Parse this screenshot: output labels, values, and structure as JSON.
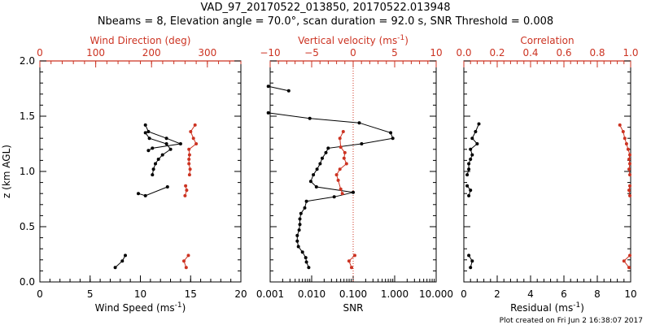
{
  "header": {
    "title_line1": "VAD_97_20170522_013850, 20170522.013948",
    "title_line2": "Nbeams = 8, Elevation angle = 70.0°, scan duration = 92.0 s, SNR Threshold = 0.008"
  },
  "footer": {
    "plot_created": "Plot created on Fri Jun  2 16:38:07 2017"
  },
  "colors": {
    "black": "#000000",
    "red": "#cc3322",
    "dotted_line": "#cc3322",
    "background": "#ffffff"
  },
  "chart_data": [
    {
      "type": "line",
      "panel": "left",
      "ylabel": "z (km AGL)",
      "ylim": [
        0,
        2.0
      ],
      "y_ticks": [
        "0.0",
        "0.5",
        "1.0",
        "1.5",
        "2.0"
      ],
      "bottom_axis": {
        "label": "Wind Speed",
        "unit": "ms",
        "unit_exp": "-1",
        "lim": [
          0,
          20
        ],
        "ticks": [
          "0",
          "5",
          "10",
          "15",
          "20"
        ]
      },
      "top_axis": {
        "label": "Wind Direction (deg)",
        "lim": [
          0,
          360
        ],
        "ticks": [
          "0",
          "100",
          "200",
          "300"
        ]
      },
      "series": [
        {
          "axis": "bottom",
          "color": "#000000",
          "segments": [
            {
              "x": [
                7.5,
                8.2,
                8.5
              ],
              "y": [
                0.13,
                0.19,
                0.24
              ]
            },
            {
              "x": [
                9.8,
                10.5,
                12.7
              ],
              "y": [
                0.8,
                0.78,
                0.86
              ]
            },
            {
              "x": [
                11.2,
                11.3,
                11.5,
                11.8,
                12.2,
                13.0,
                12.6,
                10.9,
                10.5
              ],
              "y": [
                0.97,
                1.02,
                1.07,
                1.11,
                1.15,
                1.2,
                1.25,
                1.3,
                1.35
              ]
            },
            {
              "x": [
                10.5,
                10.8,
                12.6,
                14.0,
                11.2,
                10.8
              ],
              "y": [
                1.42,
                1.36,
                1.3,
                1.25,
                1.21,
                1.19
              ]
            }
          ]
        },
        {
          "axis": "top",
          "color": "#cc3322",
          "segments": [
            {
              "x": [
                262,
                258,
                266
              ],
              "y": [
                0.13,
                0.19,
                0.24
              ]
            },
            {
              "x": [
                260,
                263,
                261
              ],
              "y": [
                0.78,
                0.83,
                0.87
              ]
            },
            {
              "x": [
                268,
                269,
                267,
                267,
                268,
                267,
                280,
                275,
                270,
                278
              ],
              "y": [
                0.97,
                1.02,
                1.07,
                1.11,
                1.15,
                1.2,
                1.25,
                1.3,
                1.36,
                1.42
              ]
            }
          ]
        }
      ]
    },
    {
      "type": "line",
      "panel": "middle",
      "ylim": [
        0,
        2.0
      ],
      "bottom_axis": {
        "label": "SNR",
        "scale": "log",
        "lim": [
          0.001,
          10
        ],
        "ticks": [
          "0.001",
          "0.010",
          "0.100",
          "1.000",
          "10.000"
        ]
      },
      "top_axis": {
        "label": "Vertical velocity",
        "unit": "ms",
        "unit_exp": "-1",
        "lim": [
          -10,
          10
        ],
        "ticks": [
          "−10",
          "−5",
          "0",
          "5",
          "10"
        ]
      },
      "reference_line": {
        "axis": "top",
        "value": 0,
        "style": "dotted"
      },
      "series": [
        {
          "axis": "bottom",
          "color": "#000000",
          "points": [
            {
              "x": 0.0085,
              "y": 0.13
            },
            {
              "x": 0.0075,
              "y": 0.18
            },
            {
              "x": 0.0072,
              "y": 0.22
            },
            {
              "x": 0.006,
              "y": 0.27
            },
            {
              "x": 0.0048,
              "y": 0.32
            },
            {
              "x": 0.0045,
              "y": 0.37
            },
            {
              "x": 0.0045,
              "y": 0.42
            },
            {
              "x": 0.005,
              "y": 0.47
            },
            {
              "x": 0.0052,
              "y": 0.52
            },
            {
              "x": 0.0052,
              "y": 0.57
            },
            {
              "x": 0.0055,
              "y": 0.62
            },
            {
              "x": 0.0068,
              "y": 0.67
            },
            {
              "x": 0.0075,
              "y": 0.73
            },
            {
              "x": 0.035,
              "y": 0.77
            },
            {
              "x": 0.1,
              "y": 0.81
            },
            {
              "x": 0.013,
              "y": 0.86
            },
            {
              "x": 0.0095,
              "y": 0.91
            },
            {
              "x": 0.011,
              "y": 0.97
            },
            {
              "x": 0.0135,
              "y": 1.02
            },
            {
              "x": 0.016,
              "y": 1.07
            },
            {
              "x": 0.018,
              "y": 1.12
            },
            {
              "x": 0.022,
              "y": 1.17
            },
            {
              "x": 0.025,
              "y": 1.21
            },
            {
              "x": 0.16,
              "y": 1.25
            },
            {
              "x": 0.9,
              "y": 1.3
            },
            {
              "x": 0.8,
              "y": 1.35
            },
            {
              "x": 0.14,
              "y": 1.44
            },
            {
              "x": 0.009,
              "y": 1.48
            },
            {
              "x": 0.0009,
              "y": 1.53
            }
          ],
          "extra_segment": [
            {
              "x": 0.0009,
              "y": 1.77
            },
            {
              "x": 0.0028,
              "y": 1.73
            }
          ]
        },
        {
          "axis": "top",
          "color": "#cc3322",
          "segments": [
            {
              "x": [
                -0.2,
                -0.5,
                0.2
              ],
              "y": [
                0.13,
                0.19,
                0.24
              ]
            },
            {
              "x": [
                -1.3,
                -1.5,
                -1.8,
                -2.0,
                -1.6,
                -0.8,
                -1.1,
                -1.0,
                -1.5,
                -1.6,
                -1.2
              ],
              "y": [
                0.8,
                0.84,
                0.92,
                0.97,
                1.02,
                1.07,
                1.12,
                1.17,
                1.22,
                1.3,
                1.36
              ]
            }
          ]
        }
      ]
    },
    {
      "type": "line",
      "panel": "right",
      "ylim": [
        0,
        2.0
      ],
      "bottom_axis": {
        "label": "Residual",
        "unit": "ms",
        "unit_exp": "-1",
        "lim": [
          0,
          10
        ],
        "ticks": [
          "0",
          "2",
          "4",
          "6",
          "8",
          "10"
        ]
      },
      "top_axis": {
        "label": "Correlation",
        "lim": [
          0,
          1.0
        ],
        "ticks": [
          "0.0",
          "0.2",
          "0.4",
          "0.6",
          "0.8",
          "1.0"
        ]
      },
      "series": [
        {
          "axis": "bottom",
          "color": "#000000",
          "segments": [
            {
              "x": [
                0.4,
                0.5,
                0.3
              ],
              "y": [
                0.13,
                0.19,
                0.24
              ]
            },
            {
              "x": [
                0.3,
                0.4,
                0.2
              ],
              "y": [
                0.78,
                0.83,
                0.87
              ]
            },
            {
              "x": [
                0.2,
                0.3,
                0.3,
                0.4,
                0.5,
                0.4,
                0.8,
                0.5,
                0.7,
                0.9
              ],
              "y": [
                0.97,
                1.02,
                1.07,
                1.11,
                1.15,
                1.2,
                1.25,
                1.3,
                1.36,
                1.43
              ]
            }
          ]
        },
        {
          "axis": "top",
          "color": "#cc3322",
          "segments": [
            {
              "x": [
                0.99,
                0.96,
                0.995
              ],
              "y": [
                0.13,
                0.19,
                0.24
              ]
            },
            {
              "x": [
                0.995,
                0.99,
                0.995
              ],
              "y": [
                0.78,
                0.83,
                0.87
              ]
            },
            {
              "x": [
                0.995,
                0.99,
                0.995,
                0.99,
                0.995,
                0.985,
                0.975,
                0.965,
                0.955,
                0.935
              ],
              "y": [
                0.97,
                1.02,
                1.07,
                1.11,
                1.15,
                1.2,
                1.25,
                1.3,
                1.36,
                1.42
              ]
            }
          ]
        }
      ]
    }
  ]
}
